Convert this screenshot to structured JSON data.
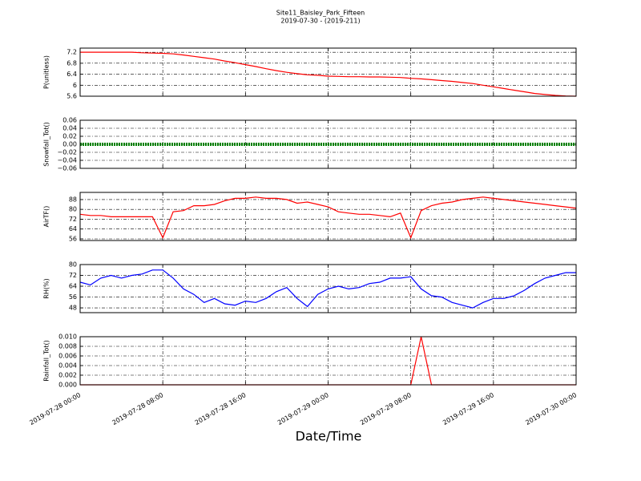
{
  "chart_data": {
    "type": "line",
    "title": "Site11_Baisley_Park_Fifteen",
    "subtitle": "2019-07-30 - (2019-211)",
    "xlabel": "Date/Time",
    "grid": true,
    "x": [
      "2019-07-28 00:00",
      "2019-07-28 01:00",
      "2019-07-28 02:00",
      "2019-07-28 03:00",
      "2019-07-28 04:00",
      "2019-07-28 05:00",
      "2019-07-28 06:00",
      "2019-07-28 07:00",
      "2019-07-28 08:00",
      "2019-07-28 09:00",
      "2019-07-28 10:00",
      "2019-07-28 11:00",
      "2019-07-28 12:00",
      "2019-07-28 13:00",
      "2019-07-28 14:00",
      "2019-07-28 15:00",
      "2019-07-28 16:00",
      "2019-07-28 17:00",
      "2019-07-28 18:00",
      "2019-07-28 19:00",
      "2019-07-28 20:00",
      "2019-07-28 21:00",
      "2019-07-28 22:00",
      "2019-07-28 23:00",
      "2019-07-29 00:00",
      "2019-07-29 01:00",
      "2019-07-29 02:00",
      "2019-07-29 03:00",
      "2019-07-29 04:00",
      "2019-07-29 05:00",
      "2019-07-29 06:00",
      "2019-07-29 07:00",
      "2019-07-29 08:00",
      "2019-07-29 09:00",
      "2019-07-29 10:00",
      "2019-07-29 11:00",
      "2019-07-29 12:00",
      "2019-07-29 13:00",
      "2019-07-29 14:00",
      "2019-07-29 15:00",
      "2019-07-29 16:00",
      "2019-07-29 17:00",
      "2019-07-29 18:00",
      "2019-07-29 19:00",
      "2019-07-29 20:00",
      "2019-07-29 21:00",
      "2019-07-29 22:00",
      "2019-07-29 23:00",
      "2019-07-30 00:00"
    ],
    "xlim": [
      "2019-07-28 00:00",
      "2019-07-30 00:00"
    ],
    "xticks": [
      {
        "value": "2019-07-28 00:00",
        "label": "2019-07-28 00:00"
      },
      {
        "value": "2019-07-28 08:00",
        "label": "2019-07-28 08:00"
      },
      {
        "value": "2019-07-28 16:00",
        "label": "2019-07-28 16:00"
      },
      {
        "value": "2019-07-29 00:00",
        "label": "2019-07-29 00:00"
      },
      {
        "value": "2019-07-29 08:00",
        "label": "2019-07-29 08:00"
      },
      {
        "value": "2019-07-29 16:00",
        "label": "2019-07-29 16:00"
      },
      {
        "value": "2019-07-30 00:00",
        "label": "2019-07-30 00:00"
      }
    ],
    "panels": [
      {
        "ylabel": "P(unitless)",
        "color": "#ff0000",
        "ylim": [
          5.6,
          7.35
        ],
        "yticks": [
          {
            "value": 5.6,
            "label": "5.6"
          },
          6.0,
          6.4,
          6.8,
          7.2
        ],
        "values": [
          7.2,
          7.2,
          7.2,
          7.2,
          7.2,
          7.2,
          7.18,
          7.17,
          7.16,
          7.14,
          7.1,
          7.05,
          7.0,
          6.95,
          6.88,
          6.82,
          6.75,
          6.68,
          6.6,
          6.53,
          6.47,
          6.42,
          6.38,
          6.36,
          6.33,
          6.32,
          6.31,
          6.31,
          6.3,
          6.3,
          6.29,
          6.28,
          6.25,
          6.23,
          6.2,
          6.17,
          6.14,
          6.1,
          6.06,
          6.0,
          5.94,
          5.88,
          5.82,
          5.76,
          5.7,
          5.66,
          5.63,
          5.61,
          5.6
        ]
      },
      {
        "ylabel": "Snowfall_Tot()",
        "color": "#008000",
        "ylim": [
          -0.06,
          0.06
        ],
        "yticks": [
          {
            "value": -0.06,
            "label": "−0.06"
          },
          {
            "value": -0.04,
            "label": "−0.04"
          },
          {
            "value": -0.02,
            "label": "−0.02"
          },
          {
            "value": 0,
            "label": "0.00"
          },
          {
            "value": 0.02,
            "label": "0.02"
          },
          {
            "value": 0.04,
            "label": "0.04"
          },
          {
            "value": 0.06,
            "label": "0.06"
          }
        ],
        "values": [
          0,
          0,
          0,
          0,
          0,
          0,
          0,
          0,
          0,
          0,
          0,
          0,
          0,
          0,
          0,
          0,
          0,
          0,
          0,
          0,
          0,
          0,
          0,
          0,
          0,
          0,
          0,
          0,
          0,
          0,
          0,
          0,
          0,
          0,
          0,
          0,
          0,
          0,
          0,
          0,
          0,
          0,
          0,
          0,
          0,
          0,
          0,
          0,
          0
        ]
      },
      {
        "ylabel": "AirTF()",
        "color": "#ff0000",
        "ylim": [
          54.7,
          93.8
        ],
        "yticks": [
          56,
          64,
          72,
          80,
          88
        ],
        "values": [
          76,
          75,
          75,
          74,
          74,
          74,
          74,
          74,
          57,
          78,
          79,
          83,
          83,
          84,
          87,
          89,
          89,
          90,
          89,
          89,
          88,
          85,
          86,
          84,
          82,
          78,
          77,
          76,
          76,
          75,
          74,
          77,
          57,
          79,
          83,
          85,
          86,
          88,
          89,
          90,
          89,
          88,
          87,
          86,
          85,
          84,
          83,
          82,
          81
        ]
      },
      {
        "ylabel": "RH(%)",
        "color": "#0000ff",
        "ylim": [
          44.5,
          80
        ],
        "yticks": [
          48,
          56,
          64,
          72,
          80
        ],
        "values": [
          67,
          65,
          70,
          72,
          70,
          72,
          73,
          76,
          76,
          70,
          62,
          58,
          52,
          55,
          51,
          50,
          53,
          52,
          55,
          60,
          63,
          55,
          49,
          58,
          62,
          64,
          62,
          63,
          66,
          67,
          70,
          70,
          71,
          62,
          57,
          56,
          52,
          50,
          48,
          52,
          55,
          55,
          57,
          61,
          66,
          70,
          72,
          74,
          74
        ]
      },
      {
        "ylabel": "Rainfall_Tot()",
        "color": "#ff0000",
        "ylim": [
          0,
          0.01
        ],
        "yticks": [
          {
            "value": 0,
            "label": "0.000"
          },
          {
            "value": 0.002,
            "label": "0.002"
          },
          {
            "value": 0.004,
            "label": "0.004"
          },
          {
            "value": 0.006,
            "label": "0.006"
          },
          {
            "value": 0.008,
            "label": "0.008"
          },
          {
            "value": 0.01,
            "label": "0.010"
          }
        ],
        "values": [
          0,
          0,
          0,
          0,
          0,
          0,
          0,
          0,
          0,
          0,
          0,
          0,
          0,
          0,
          0,
          0,
          0,
          0,
          0,
          0,
          0,
          0,
          0,
          0,
          0,
          0,
          0,
          0,
          0,
          0,
          0,
          0,
          0,
          0.01,
          0,
          0,
          0,
          0,
          0,
          0,
          0,
          0,
          0,
          0,
          0,
          0,
          0,
          0,
          0
        ]
      }
    ]
  }
}
